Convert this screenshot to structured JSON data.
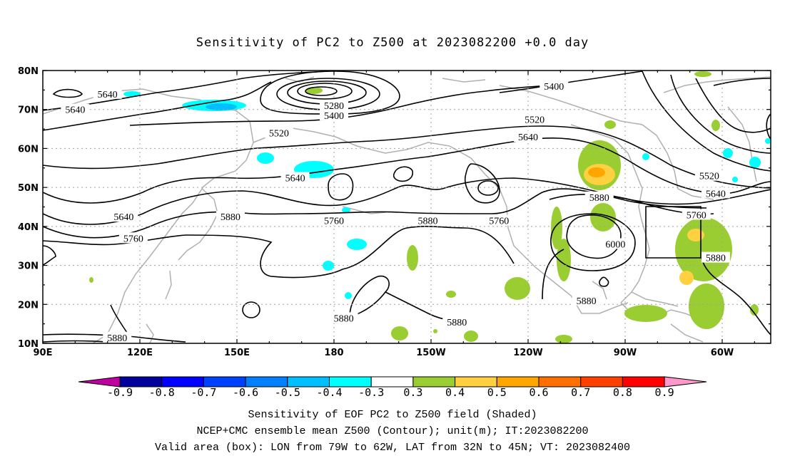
{
  "title": "Sensitivity of PC2 to Z500 at 2023082200 +0.0 day",
  "map": {
    "lat_labels": [
      "80N",
      "70N",
      "60N",
      "50N",
      "40N",
      "30N",
      "20N",
      "10N"
    ],
    "lon_labels": [
      "90E",
      "120E",
      "150E",
      "180",
      "150W",
      "120W",
      "90W",
      "60W"
    ],
    "contour_labels": [
      {
        "text": "5640",
        "lon": 110,
        "lat": 74
      },
      {
        "text": "5640",
        "lon": 100,
        "lat": 70
      },
      {
        "text": "5280",
        "lon": 180,
        "lat": 71
      },
      {
        "text": "5400",
        "lon": 180,
        "lat": 68.5
      },
      {
        "text": "5520",
        "lon": 163,
        "lat": 64
      },
      {
        "text": "5400",
        "lon": -112,
        "lat": 76
      },
      {
        "text": "5520",
        "lon": -118,
        "lat": 67.5
      },
      {
        "text": "5640",
        "lon": -120,
        "lat": 63
      },
      {
        "text": "5640",
        "lon": 168,
        "lat": 52.5
      },
      {
        "text": "5640",
        "lon": 115,
        "lat": 42.5
      },
      {
        "text": "5880",
        "lon": 148,
        "lat": 42.5
      },
      {
        "text": "5760",
        "lon": 180,
        "lat": 41.5
      },
      {
        "text": "5880",
        "lon": -151,
        "lat": 41.5
      },
      {
        "text": "5760",
        "lon": -129,
        "lat": 41.5
      },
      {
        "text": "5760",
        "lon": 118,
        "lat": 37
      },
      {
        "text": "5880",
        "lon": -98,
        "lat": 47.5
      },
      {
        "text": "5520",
        "lon": -64,
        "lat": 53
      },
      {
        "text": "5640",
        "lon": -62,
        "lat": 48.5
      },
      {
        "text": "5760",
        "lon": -68,
        "lat": 43
      },
      {
        "text": "6000",
        "lon": -93,
        "lat": 35.5
      },
      {
        "text": "5880",
        "lon": -62,
        "lat": 32
      },
      {
        "text": "5880",
        "lon": -102,
        "lat": 21
      },
      {
        "text": "5880",
        "lon": -177,
        "lat": 16.5
      },
      {
        "text": "5880",
        "lon": -142,
        "lat": 15.5
      },
      {
        "text": "5880",
        "lon": 113,
        "lat": 11.5
      }
    ]
  },
  "colorbar": {
    "values": [
      "-0.9",
      "-0.8",
      "-0.7",
      "-0.6",
      "-0.5",
      "-0.4",
      "-0.3",
      "0.3",
      "0.4",
      "0.5",
      "0.6",
      "0.7",
      "0.8",
      "0.9"
    ],
    "colors": [
      "#00009c",
      "#0000ff",
      "#0040ff",
      "#0080ff",
      "#00bfff",
      "#00ffff",
      "#ffffff",
      "#9acd32",
      "#ffd040",
      "#ffa500",
      "#ff7000",
      "#ff4000",
      "#ff0000"
    ],
    "left_tip": "#c000a0",
    "right_tip": "#ff99cc"
  },
  "caption": {
    "line1": "Sensitivity of EOF PC2 to Z500 field (Shaded)",
    "line2": "NCEP+CMC ensemble mean Z500 (Contour); unit(m); IT:2023082200",
    "line3": "Valid area (box): LON from 79W to 62W, LAT from 32N to 45N; VT: 2023082400"
  }
}
